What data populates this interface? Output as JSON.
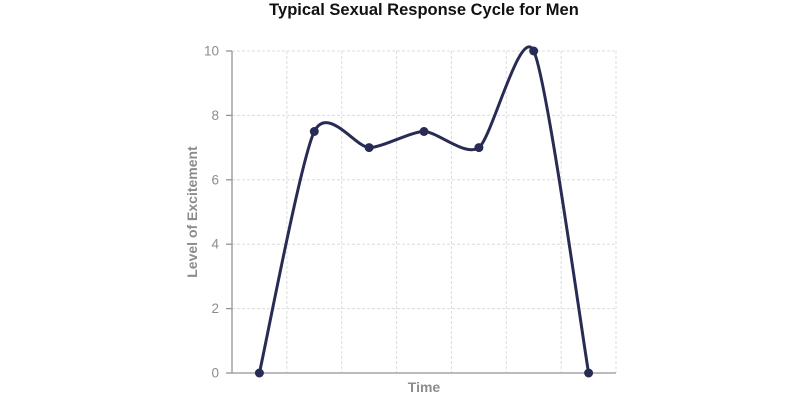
{
  "chart_data": {
    "type": "line",
    "title": "Typical Sexual Response Cycle for Men",
    "xlabel": "Time",
    "ylabel": "Level of Excitement",
    "x": [
      0.5,
      1.5,
      2.5,
      3.5,
      4.5,
      5.5,
      6.5
    ],
    "y": [
      0,
      7.5,
      7,
      7.5,
      7,
      10,
      0
    ],
    "xlim": [
      0,
      7
    ],
    "ylim": [
      0,
      10
    ],
    "yticks": [
      0,
      2,
      4,
      6,
      8,
      10
    ],
    "x_tick_labels_shown": false,
    "grid": true,
    "grid_style": "dashed",
    "legend": "none",
    "curve": "smooth",
    "marker": "circle"
  },
  "colors": {
    "line": "#282c54",
    "marker": "#282c54",
    "grid": "#dcdcdc",
    "axis": "#949494",
    "tick_text": "#8c8c8c",
    "axis_label_text": "#8c8c8c",
    "title_text": "#111111",
    "background": "#ffffff"
  }
}
